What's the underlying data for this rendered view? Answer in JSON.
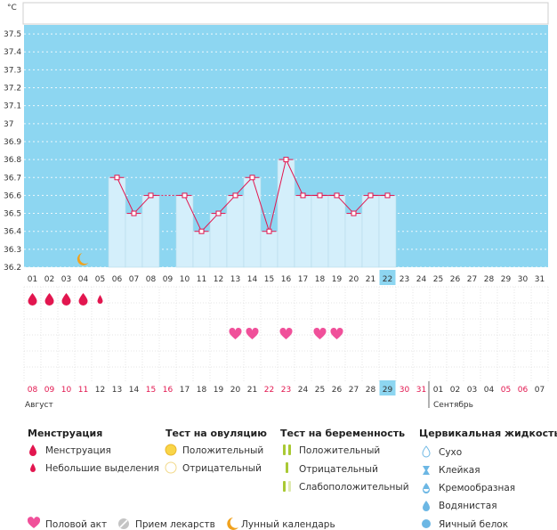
{
  "chart_data": {
    "type": "line",
    "unit_label": "°C",
    "y_ticks": [
      "37.5",
      "37.4",
      "37.3",
      "37.2",
      "37.1",
      "37",
      "36.9",
      "36.8",
      "36.7",
      "36.6",
      "36.5",
      "36.4",
      "36.3",
      "36.2"
    ],
    "ylim": [
      36.2,
      37.55
    ],
    "cycle_days": [
      "01",
      "02",
      "03",
      "04",
      "05",
      "06",
      "07",
      "08",
      "09",
      "10",
      "11",
      "12",
      "13",
      "14",
      "15",
      "16",
      "17",
      "18",
      "19",
      "20",
      "21",
      "22",
      "23",
      "24",
      "25",
      "26",
      "27",
      "28",
      "29",
      "30",
      "31"
    ],
    "temperatures": [
      null,
      null,
      null,
      null,
      null,
      36.7,
      36.5,
      36.6,
      null,
      36.6,
      36.4,
      36.5,
      36.6,
      36.7,
      36.4,
      36.8,
      36.6,
      36.6,
      36.6,
      36.5,
      36.6,
      36.6,
      null,
      null,
      null,
      null,
      null,
      null,
      null,
      null,
      null
    ],
    "interpolated_segments": [
      [
        8,
        10
      ]
    ],
    "current_day": "22",
    "moon_day": "04",
    "menstruation_days": [
      "01",
      "02",
      "03",
      "04"
    ],
    "spotting_days": [
      "05"
    ],
    "intercourse_days": [
      "13",
      "14",
      "16",
      "18",
      "19"
    ],
    "calendar_dates": [
      {
        "d": "08",
        "red": true
      },
      {
        "d": "09",
        "red": true
      },
      {
        "d": "10",
        "red": true
      },
      {
        "d": "11",
        "red": true
      },
      {
        "d": "12",
        "red": false
      },
      {
        "d": "13",
        "red": false
      },
      {
        "d": "14",
        "red": false
      },
      {
        "d": "15",
        "red": true
      },
      {
        "d": "16",
        "red": true
      },
      {
        "d": "17",
        "red": false
      },
      {
        "d": "18",
        "red": false
      },
      {
        "d": "19",
        "red": false
      },
      {
        "d": "20",
        "red": false
      },
      {
        "d": "21",
        "red": false
      },
      {
        "d": "22",
        "red": true
      },
      {
        "d": "23",
        "red": true
      },
      {
        "d": "24",
        "red": false
      },
      {
        "d": "25",
        "red": false
      },
      {
        "d": "26",
        "red": false
      },
      {
        "d": "27",
        "red": false
      },
      {
        "d": "28",
        "red": false
      },
      {
        "d": "29",
        "red": false,
        "highlight": true
      },
      {
        "d": "30",
        "red": true
      },
      {
        "d": "31",
        "red": true
      },
      {
        "d": "01",
        "red": false
      },
      {
        "d": "02",
        "red": false
      },
      {
        "d": "03",
        "red": false
      },
      {
        "d": "04",
        "red": false
      },
      {
        "d": "05",
        "red": true
      },
      {
        "d": "06",
        "red": true
      },
      {
        "d": "07",
        "red": false
      }
    ],
    "month_labels": [
      "Август",
      "Сентябрь"
    ]
  },
  "legend": {
    "menstruation": {
      "title": "Менструация",
      "items": [
        "Менструация",
        "Небольшие выделения"
      ]
    },
    "ovulation_test": {
      "title": "Тест на овуляцию",
      "items": [
        "Положительный",
        "Отрицательный"
      ]
    },
    "pregnancy_test": {
      "title": "Тест на беременность",
      "items": [
        "Положительный",
        "Отрицательный",
        "Слабоположительный"
      ]
    },
    "cervical": {
      "title": "Цервикальная жидкость",
      "items": [
        "Сухо",
        "Клейкая",
        "Кремообразная",
        "Водянистая",
        "Яичный белок"
      ]
    },
    "bottom": [
      "Половой акт",
      "Прием лекарств",
      "Лунный календарь"
    ]
  },
  "colors": {
    "blue_band": "#8dd6f1",
    "bar_fill": "#d4effb",
    "bar_stroke": "#b6dbe9",
    "line": "#e2164f",
    "heart": "#f0509a",
    "drop": "#e2164f",
    "moon": "#f0a21e",
    "today": "#8dd6f1"
  }
}
